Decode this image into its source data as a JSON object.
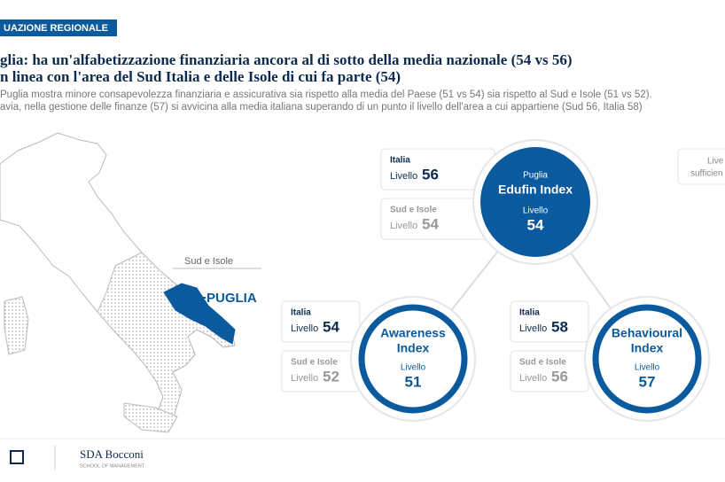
{
  "header": {
    "badge": "UAZIONE REGIONALE",
    "title_lines": [
      "glia: ha un'alfabetizzazione finanziaria ancora al di sotto della media nazionale (54 vs 56)",
      "n linea con l'area del Sud Italia e delle Isole di cui fa parte (54)"
    ],
    "subtitle_lines": [
      "Puglia mostra minore consapevolezza finanziaria e assicurativa sia rispetto alla media del Paese (51 vs 54) sia rispetto al Sud e Isole (51 vs 52).",
      "avia, nella gestione delle finanze (57) si avvicina alla media italiana superando di un punto il livello dell'area a cui appartiene (Sud 56, Italia 58)"
    ]
  },
  "map": {
    "area_label": "Sud e Isole",
    "region_label": "PUGLIA"
  },
  "indices": [
    {
      "region": "Puglia",
      "name": "Edufin Index",
      "level_label": "Livello",
      "value": 54,
      "comparisons": [
        {
          "label": "Italia",
          "level_label": "Livello",
          "value": 56
        },
        {
          "label": "Sud e Isole",
          "level_label": "Livello",
          "value": 54
        }
      ]
    },
    {
      "name_lines": [
        "Awareness",
        "Index"
      ],
      "level_label": "Livello",
      "value": 51,
      "comparisons": [
        {
          "label": "Italia",
          "level_label": "Livello",
          "value": 54
        },
        {
          "label": "Sud e Isole",
          "level_label": "Livello",
          "value": 52
        }
      ]
    },
    {
      "name_lines": [
        "Behavioural",
        "Index"
      ],
      "level_label": "Livello",
      "value": 57,
      "comparisons": [
        {
          "label": "Italia",
          "level_label": "Livello",
          "value": 58
        },
        {
          "label": "Sud e Isole",
          "level_label": "Livello",
          "value": 56
        }
      ]
    }
  ],
  "side_note_lines": [
    "Live",
    "sufficien"
  ],
  "footer": {
    "logo": "SDA Bocconi",
    "logo_sub": "SCHOOL OF MANAGEMENT"
  }
}
